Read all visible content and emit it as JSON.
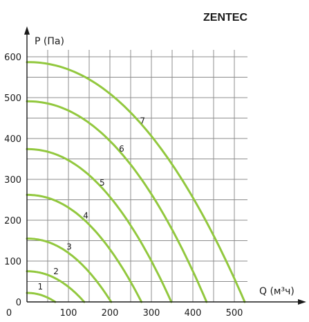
{
  "brand": "ZENTEC",
  "chart_data": {
    "type": "line",
    "xlabel": "Q (м³ч)",
    "ylabel": "P (Па)",
    "xlim": [
      0,
      525
    ],
    "ylim": [
      0,
      600
    ],
    "x_ticks": [
      0,
      100,
      200,
      300,
      400,
      500
    ],
    "y_ticks": [
      0,
      100,
      200,
      300,
      400,
      500,
      600
    ],
    "x_tick_labels": [
      "0",
      "100",
      "200",
      "300",
      "400",
      "500"
    ],
    "y_tick_labels": [
      "0",
      "100",
      "200",
      "300",
      "400",
      "500",
      "600"
    ],
    "grid": true,
    "curve_color": "#92c83e",
    "series": [
      {
        "name": "1",
        "max_pressure": 22,
        "max_flow": 68
      },
      {
        "name": "2",
        "max_pressure": 75,
        "max_flow": 138
      },
      {
        "name": "3",
        "max_pressure": 155,
        "max_flow": 203
      },
      {
        "name": "4",
        "max_pressure": 262,
        "max_flow": 276
      },
      {
        "name": "5",
        "max_pressure": 374,
        "max_flow": 348
      },
      {
        "name": "6",
        "max_pressure": 491,
        "max_flow": 433
      },
      {
        "name": "7",
        "max_pressure": 587,
        "max_flow": 525
      }
    ]
  }
}
